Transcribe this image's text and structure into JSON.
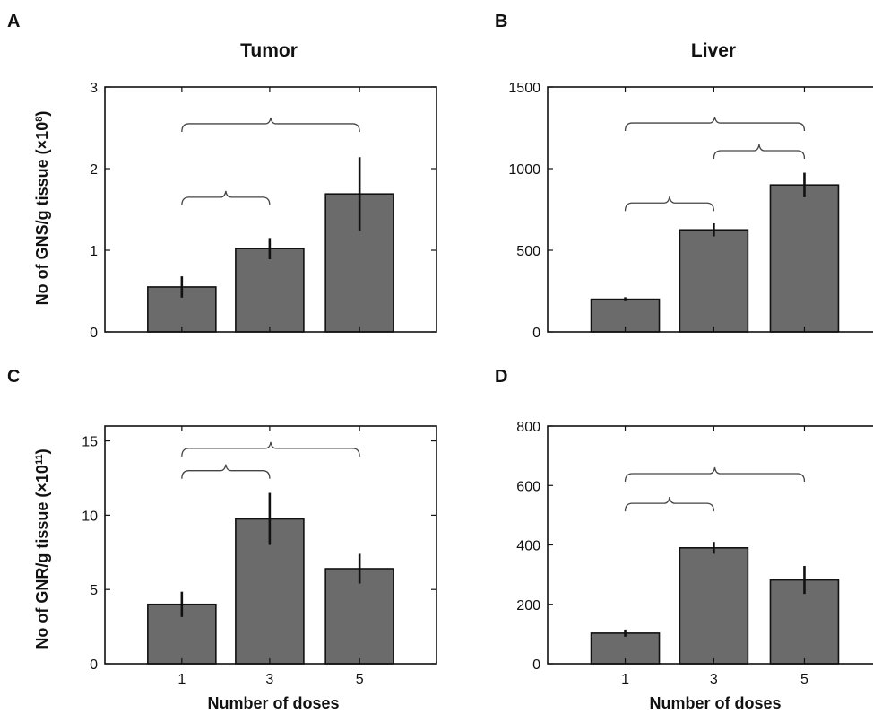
{
  "panels": {
    "A": {
      "letter": "A",
      "title": "Tumor"
    },
    "B": {
      "letter": "B",
      "title": "Liver"
    },
    "C": {
      "letter": "C",
      "title": ""
    },
    "D": {
      "letter": "D",
      "title": ""
    }
  },
  "ylabel_top": {
    "prefix": "No of GNS/g tissue (",
    "mult": "×10",
    "exp": "8",
    "suffix": ")"
  },
  "ylabel_bottom": {
    "prefix": "No of GNR/g tissue (",
    "mult": "×10",
    "exp": "11",
    "suffix": ")"
  },
  "xlabel": "Number of doses",
  "colors": {
    "bar": "#6b6b6b",
    "axis": "#111111",
    "brace": "#444444"
  },
  "chart_data": [
    {
      "panel": "A",
      "type": "bar",
      "title": "Tumor",
      "categories": [
        "1",
        "3",
        "5"
      ],
      "values": [
        0.55,
        1.02,
        1.69
      ],
      "errors": [
        0.13,
        0.13,
        0.45
      ],
      "ylim": [
        0,
        3
      ],
      "yticks": [
        0,
        1,
        2,
        3
      ],
      "ylabel": "No of GNS/g tissue (×10⁸)",
      "xlabel": "",
      "show_x_tick_labels": false,
      "significance": [
        {
          "from": "1",
          "to": "3",
          "level": 1.65
        },
        {
          "from": "1",
          "to": "5",
          "level": 2.55
        }
      ]
    },
    {
      "panel": "B",
      "type": "bar",
      "title": "Liver",
      "categories": [
        "1",
        "3",
        "5"
      ],
      "values": [
        200,
        625,
        900
      ],
      "errors": [
        12,
        40,
        75
      ],
      "ylim": [
        0,
        1500
      ],
      "yticks": [
        0,
        500,
        1000,
        1500
      ],
      "ylabel": "",
      "xlabel": "",
      "show_x_tick_labels": false,
      "significance": [
        {
          "from": "1",
          "to": "3",
          "level": 790
        },
        {
          "from": "3",
          "to": "5",
          "level": 1110
        },
        {
          "from": "1",
          "to": "5",
          "level": 1280
        }
      ]
    },
    {
      "panel": "C",
      "type": "bar",
      "title": "",
      "categories": [
        "1",
        "3",
        "5"
      ],
      "values": [
        4.0,
        9.75,
        6.4
      ],
      "errors": [
        0.85,
        1.75,
        1.0
      ],
      "ylim": [
        0,
        16
      ],
      "yticks": [
        0,
        5,
        10,
        15
      ],
      "ylabel": "No of GNR/g tissue (×10¹¹)",
      "xlabel": "Number of doses",
      "show_x_tick_labels": true,
      "significance": [
        {
          "from": "1",
          "to": "3",
          "level": 13.0
        },
        {
          "from": "1",
          "to": "5",
          "level": 14.5
        }
      ]
    },
    {
      "panel": "D",
      "type": "bar",
      "title": "",
      "categories": [
        "1",
        "3",
        "5"
      ],
      "values": [
        103,
        390,
        282
      ],
      "errors": [
        12,
        20,
        47
      ],
      "ylim": [
        0,
        800
      ],
      "yticks": [
        0,
        200,
        400,
        600,
        800
      ],
      "ylabel": "",
      "xlabel": "Number of doses",
      "show_x_tick_labels": true,
      "significance": [
        {
          "from": "1",
          "to": "3",
          "level": 540
        },
        {
          "from": "1",
          "to": "5",
          "level": 640
        }
      ]
    }
  ]
}
